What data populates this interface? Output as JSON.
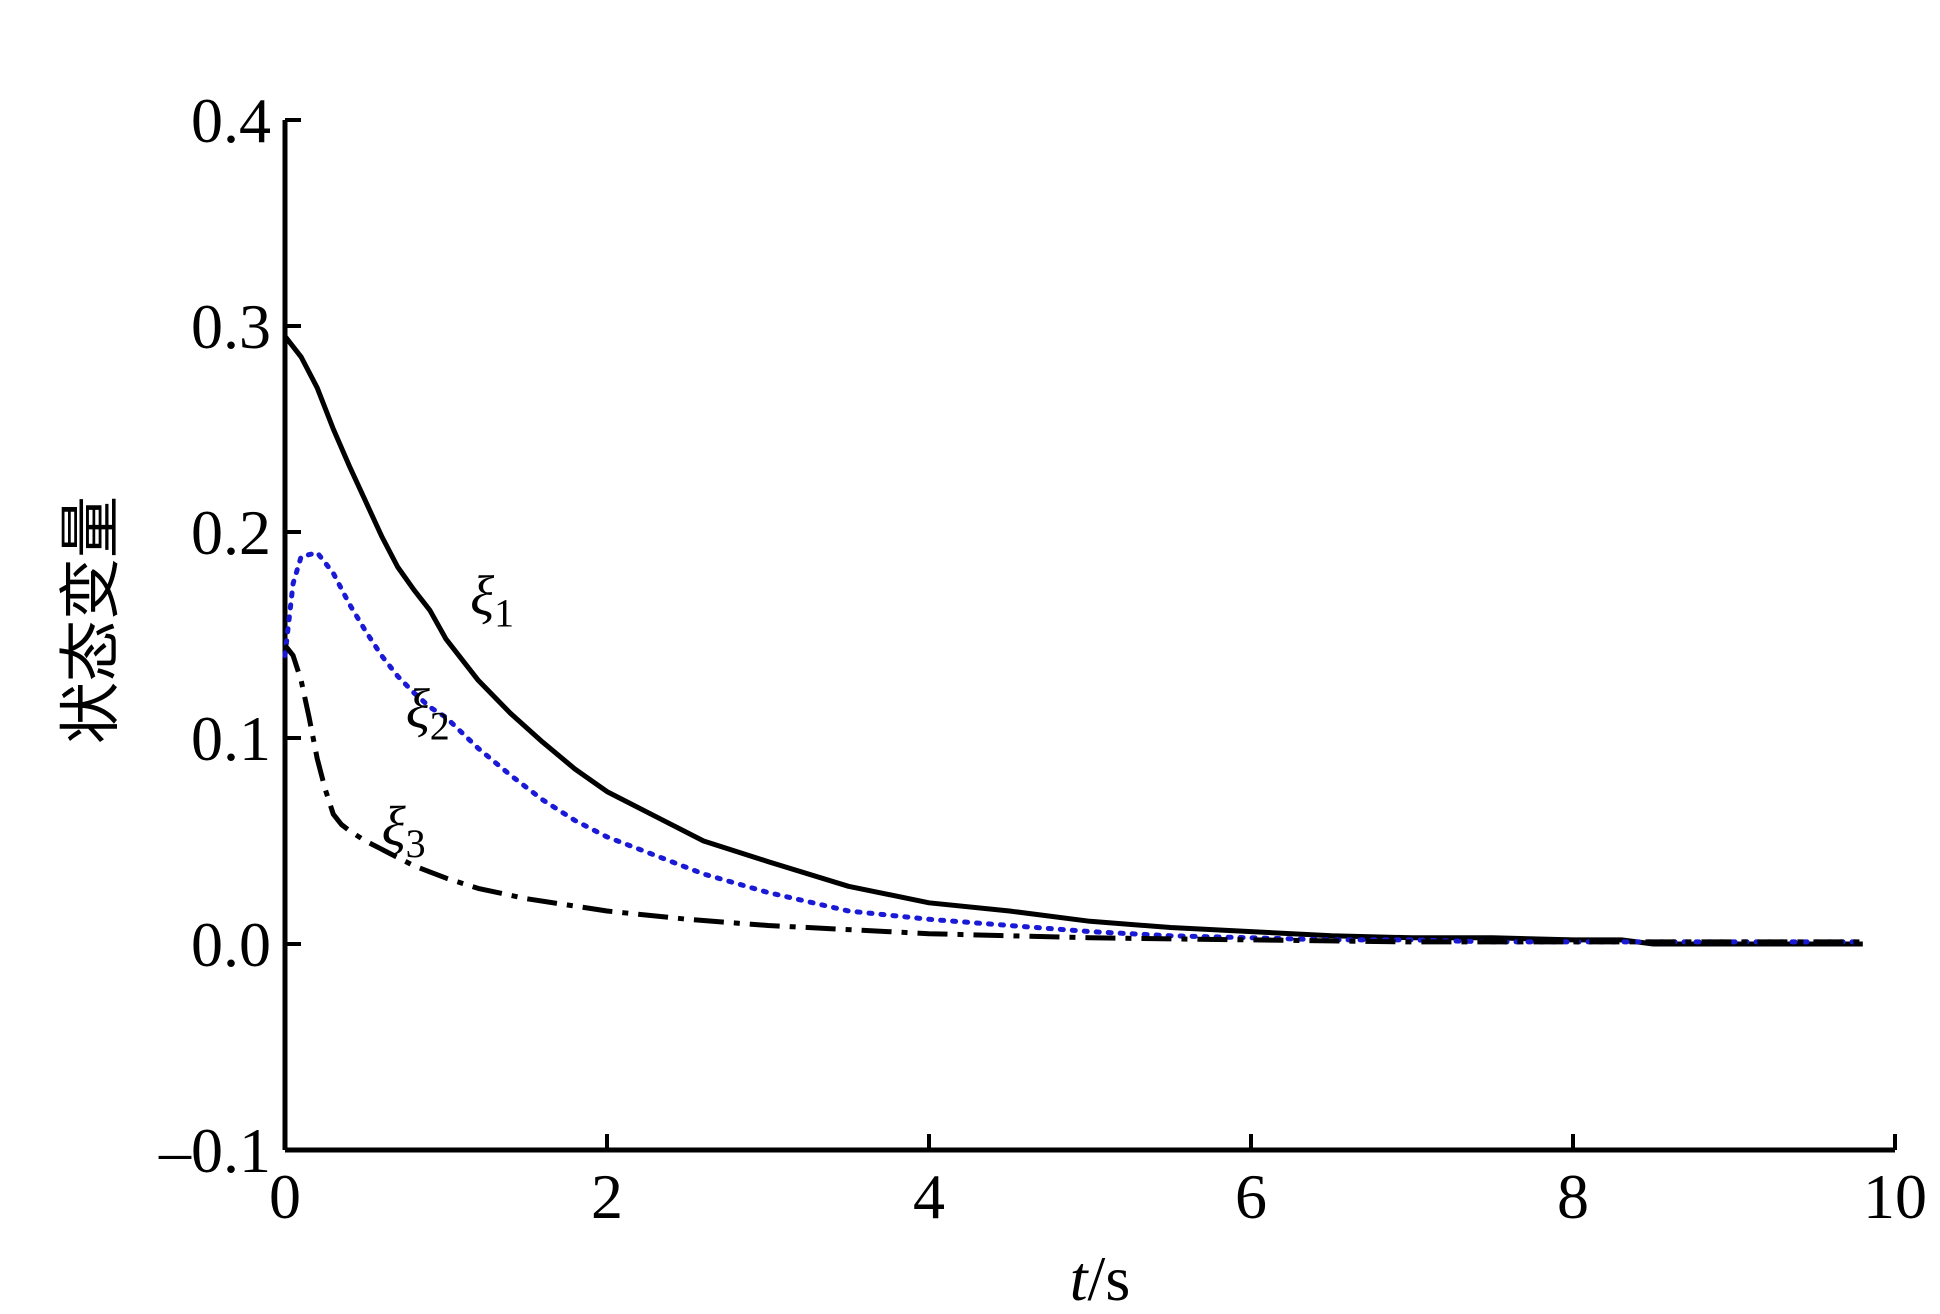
{
  "chart_data": {
    "type": "line",
    "xlabel_italic": "t",
    "xlabel_rest": "/s",
    "ylabel": "状态变量",
    "xlim": [
      0,
      10
    ],
    "ylim": [
      -0.1,
      0.4
    ],
    "xticks": [
      "0",
      "2",
      "4",
      "6",
      "8",
      "10"
    ],
    "xtick_values": [
      0,
      2,
      4,
      6,
      8,
      10
    ],
    "yticks": [
      "0.4",
      "0.3",
      "0.2",
      "0.1",
      "0.0",
      "–0.1"
    ],
    "ytick_values": [
      0.4,
      0.3,
      0.2,
      0.1,
      0.0,
      -0.1
    ],
    "grid": false,
    "series": [
      {
        "name": "ξ1",
        "label_symbol": "ξ",
        "label_sub": "1",
        "color": "#000000",
        "style": "solid",
        "x": [
          0,
          0.1,
          0.2,
          0.3,
          0.4,
          0.5,
          0.6,
          0.7,
          0.8,
          0.9,
          1.0,
          1.2,
          1.4,
          1.6,
          1.8,
          2.0,
          2.3,
          2.6,
          3.0,
          3.5,
          4.0,
          4.5,
          5.0,
          5.5,
          6.0,
          6.5,
          7.0,
          7.5,
          8.0,
          8.3,
          8.5,
          9.0,
          9.5,
          9.8
        ],
        "y": [
          0.295,
          0.285,
          0.27,
          0.25,
          0.232,
          0.215,
          0.198,
          0.183,
          0.172,
          0.162,
          0.148,
          0.128,
          0.112,
          0.098,
          0.085,
          0.074,
          0.062,
          0.05,
          0.04,
          0.028,
          0.02,
          0.016,
          0.011,
          0.008,
          0.006,
          0.004,
          0.003,
          0.003,
          0.002,
          0.002,
          0.0,
          0.0,
          0.0,
          0.0
        ]
      },
      {
        "name": "ξ2",
        "label_symbol": "ξ",
        "label_sub": "2",
        "color": "#1a1ad6",
        "style": "dotted",
        "x": [
          0,
          0.05,
          0.1,
          0.2,
          0.3,
          0.4,
          0.5,
          0.6,
          0.7,
          0.8,
          0.9,
          1.0,
          1.2,
          1.4,
          1.6,
          1.8,
          2.0,
          2.3,
          2.6,
          3.0,
          3.5,
          4.0,
          4.5,
          5.0,
          5.5,
          6.0,
          6.5,
          7.0,
          7.5,
          8.0,
          8.5,
          9.0,
          9.5,
          9.8
        ],
        "y": [
          0.14,
          0.175,
          0.188,
          0.19,
          0.18,
          0.165,
          0.152,
          0.14,
          0.13,
          0.122,
          0.115,
          0.11,
          0.095,
          0.082,
          0.07,
          0.06,
          0.052,
          0.043,
          0.034,
          0.025,
          0.016,
          0.012,
          0.009,
          0.006,
          0.004,
          0.003,
          0.002,
          0.002,
          0.001,
          0.001,
          0.001,
          0.001,
          0.001,
          0.001
        ]
      },
      {
        "name": "ξ3",
        "label_symbol": "ξ",
        "label_sub": "3",
        "color": "#000000",
        "style": "dashdot",
        "x": [
          0,
          0.05,
          0.1,
          0.15,
          0.2,
          0.25,
          0.3,
          0.35,
          0.4,
          0.5,
          0.6,
          0.7,
          0.8,
          0.9,
          1.0,
          1.2,
          1.5,
          2.0,
          2.5,
          3.0,
          3.5,
          4.0,
          5.0,
          6.0,
          7.0,
          8.0,
          9.0,
          9.8
        ],
        "y": [
          0.145,
          0.14,
          0.128,
          0.11,
          0.09,
          0.075,
          0.063,
          0.058,
          0.055,
          0.05,
          0.046,
          0.042,
          0.038,
          0.035,
          0.032,
          0.027,
          0.022,
          0.016,
          0.012,
          0.009,
          0.007,
          0.005,
          0.003,
          0.002,
          0.001,
          0.001,
          0.001,
          0.001
        ]
      }
    ],
    "annotations": [
      {
        "series": "ξ1",
        "x": 1.15,
        "y": 0.16
      },
      {
        "series": "ξ2",
        "x": 0.75,
        "y": 0.105
      },
      {
        "series": "ξ3",
        "x": 0.6,
        "y": 0.048
      }
    ]
  }
}
